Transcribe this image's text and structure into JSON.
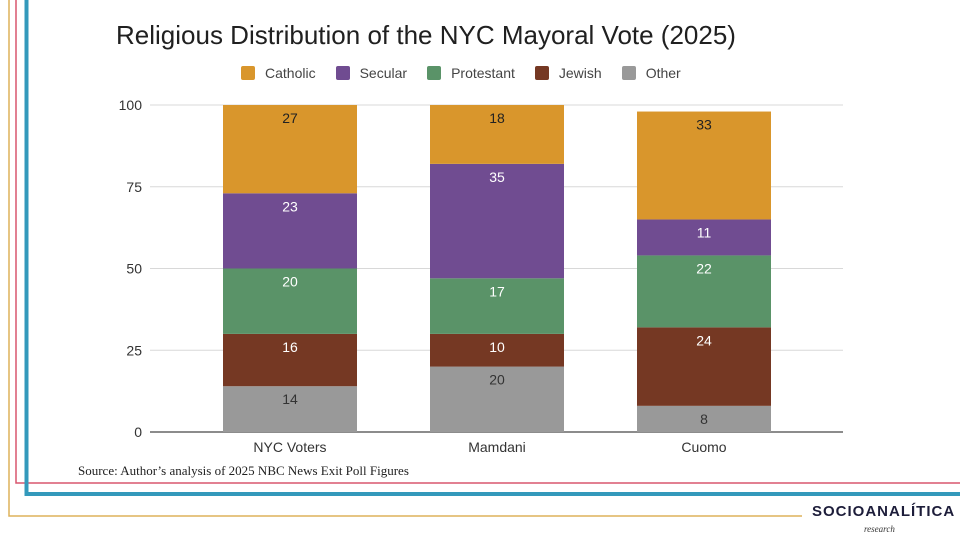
{
  "chart_data": {
    "type": "bar",
    "stacked": true,
    "title": "Religious Distribution of the NYC Mayoral Vote (2025)",
    "xlabel": "",
    "ylabel": "",
    "categories": [
      "NYC Voters",
      "Mamdani",
      "Cuomo"
    ],
    "series": [
      {
        "name": "Other",
        "color": "#999999",
        "label_color": "#333333",
        "values": [
          14,
          20,
          8
        ]
      },
      {
        "name": "Jewish",
        "color": "#753823",
        "label_color": "#ffffff",
        "values": [
          16,
          10,
          24
        ]
      },
      {
        "name": "Protestant",
        "color": "#5a9368",
        "label_color": "#ffffff",
        "values": [
          20,
          17,
          22
        ]
      },
      {
        "name": "Secular",
        "color": "#704c91",
        "label_color": "#ffffff",
        "values": [
          23,
          35,
          11
        ]
      },
      {
        "name": "Catholic",
        "color": "#d9962c",
        "label_color": "#222222",
        "values": [
          27,
          18,
          33
        ]
      }
    ],
    "legend_order": [
      "Catholic",
      "Secular",
      "Protestant",
      "Jewish",
      "Other"
    ],
    "legend_position": "top",
    "ylim": [
      0,
      100
    ],
    "yticks": [
      0,
      25,
      50,
      75,
      100
    ],
    "grid": true
  },
  "source_note": "Source: Author’s analysis of 2025 NBC News Exit Poll Figures",
  "logo": {
    "name": "SOCIOANALÍTICA",
    "tagline": "research"
  },
  "frame_colors": {
    "gold": "#ddb25a",
    "red": "#d9566e",
    "blue": "#3399bb"
  }
}
